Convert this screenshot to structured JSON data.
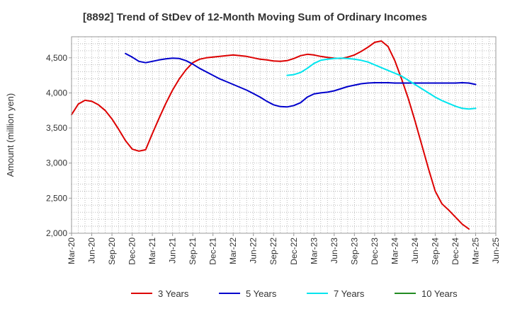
{
  "chart_data": {
    "type": "line",
    "title": "[8892]  Trend of StDev of 12-Month Moving Sum of Ordinary Incomes",
    "xlabel": "",
    "ylabel": "Amount (million yen)",
    "ylim": [
      2000,
      4800
    ],
    "yticks": [
      2000,
      2500,
      3000,
      3500,
      4000,
      4500
    ],
    "ytick_labels": [
      "2,000",
      "2,500",
      "3,000",
      "3,500",
      "4,000",
      "4,500"
    ],
    "x_start": "Mar-20",
    "x_end": "Jun-25",
    "xtick_labels": [
      "Mar-20",
      "Jun-20",
      "Sep-20",
      "Dec-20",
      "Mar-21",
      "Jun-21",
      "Sep-21",
      "Dec-21",
      "Mar-22",
      "Jun-22",
      "Sep-22",
      "Dec-22",
      "Mar-23",
      "Jun-23",
      "Sep-23",
      "Dec-23",
      "Mar-24",
      "Jun-24",
      "Sep-24",
      "Dec-24",
      "Mar-25",
      "Jun-25"
    ],
    "grid": true,
    "legend_position": "bottom",
    "series": [
      {
        "name": "3 Years",
        "color": "#dd0000",
        "points": [
          [
            "Mar-20",
            3690
          ],
          [
            "Apr-20",
            3840
          ],
          [
            "May-20",
            3895
          ],
          [
            "Jun-20",
            3880
          ],
          [
            "Jul-20",
            3830
          ],
          [
            "Aug-20",
            3750
          ],
          [
            "Sep-20",
            3630
          ],
          [
            "Oct-20",
            3480
          ],
          [
            "Nov-20",
            3320
          ],
          [
            "Dec-20",
            3200
          ],
          [
            "Jan-21",
            3170
          ],
          [
            "Feb-21",
            3190
          ],
          [
            "Mar-21",
            3420
          ],
          [
            "Apr-21",
            3640
          ],
          [
            "May-21",
            3850
          ],
          [
            "Jun-21",
            4040
          ],
          [
            "Jul-21",
            4200
          ],
          [
            "Aug-21",
            4330
          ],
          [
            "Sep-21",
            4430
          ],
          [
            "Oct-21",
            4480
          ],
          [
            "Nov-21",
            4500
          ],
          [
            "Dec-21",
            4510
          ],
          [
            "Jan-22",
            4520
          ],
          [
            "Feb-22",
            4530
          ],
          [
            "Mar-22",
            4540
          ],
          [
            "Apr-22",
            4530
          ],
          [
            "May-22",
            4520
          ],
          [
            "Jun-22",
            4500
          ],
          [
            "Jul-22",
            4480
          ],
          [
            "Aug-22",
            4470
          ],
          [
            "Sep-22",
            4455
          ],
          [
            "Oct-22",
            4450
          ],
          [
            "Nov-22",
            4460
          ],
          [
            "Dec-22",
            4490
          ],
          [
            "Jan-23",
            4530
          ],
          [
            "Feb-23",
            4550
          ],
          [
            "Mar-23",
            4540
          ],
          [
            "Apr-23",
            4520
          ],
          [
            "May-23",
            4505
          ],
          [
            "Jun-23",
            4495
          ],
          [
            "Jul-23",
            4490
          ],
          [
            "Aug-23",
            4510
          ],
          [
            "Sep-23",
            4540
          ],
          [
            "Oct-23",
            4590
          ],
          [
            "Nov-23",
            4650
          ],
          [
            "Dec-23",
            4720
          ],
          [
            "Jan-24",
            4740
          ],
          [
            "Feb-24",
            4660
          ],
          [
            "Mar-24",
            4460
          ],
          [
            "Apr-24",
            4200
          ],
          [
            "May-24",
            3920
          ],
          [
            "Jun-24",
            3600
          ],
          [
            "Jul-24",
            3260
          ],
          [
            "Aug-24",
            2920
          ],
          [
            "Sep-24",
            2600
          ],
          [
            "Oct-24",
            2420
          ],
          [
            "Nov-24",
            2330
          ],
          [
            "Dec-24",
            2230
          ],
          [
            "Jan-25",
            2130
          ],
          [
            "Feb-25",
            2060
          ]
        ]
      },
      {
        "name": "5 Years",
        "color": "#0000cc",
        "points": [
          [
            "Nov-20",
            4560
          ],
          [
            "Dec-20",
            4510
          ],
          [
            "Jan-21",
            4450
          ],
          [
            "Feb-21",
            4430
          ],
          [
            "Mar-21",
            4450
          ],
          [
            "Apr-21",
            4470
          ],
          [
            "May-21",
            4485
          ],
          [
            "Jun-21",
            4495
          ],
          [
            "Jul-21",
            4490
          ],
          [
            "Aug-21",
            4460
          ],
          [
            "Sep-21",
            4410
          ],
          [
            "Oct-21",
            4350
          ],
          [
            "Nov-21",
            4300
          ],
          [
            "Dec-21",
            4250
          ],
          [
            "Jan-22",
            4200
          ],
          [
            "Feb-22",
            4160
          ],
          [
            "Mar-22",
            4120
          ],
          [
            "Apr-22",
            4080
          ],
          [
            "May-22",
            4040
          ],
          [
            "Jun-22",
            3990
          ],
          [
            "Jul-22",
            3940
          ],
          [
            "Aug-22",
            3880
          ],
          [
            "Sep-22",
            3830
          ],
          [
            "Oct-22",
            3805
          ],
          [
            "Nov-22",
            3800
          ],
          [
            "Dec-22",
            3820
          ],
          [
            "Jan-23",
            3860
          ],
          [
            "Feb-23",
            3940
          ],
          [
            "Mar-23",
            3985
          ],
          [
            "Apr-23",
            4000
          ],
          [
            "May-23",
            4010
          ],
          [
            "Jun-23",
            4030
          ],
          [
            "Jul-23",
            4060
          ],
          [
            "Aug-23",
            4090
          ],
          [
            "Sep-23",
            4110
          ],
          [
            "Oct-23",
            4130
          ],
          [
            "Nov-23",
            4140
          ],
          [
            "Dec-23",
            4145
          ],
          [
            "Jan-24",
            4145
          ],
          [
            "Feb-24",
            4145
          ],
          [
            "Mar-24",
            4140
          ],
          [
            "Apr-24",
            4140
          ],
          [
            "May-24",
            4140
          ],
          [
            "Jun-24",
            4140
          ],
          [
            "Jul-24",
            4140
          ],
          [
            "Aug-24",
            4140
          ],
          [
            "Sep-24",
            4140
          ],
          [
            "Oct-24",
            4140
          ],
          [
            "Nov-24",
            4140
          ],
          [
            "Dec-24",
            4140
          ],
          [
            "Jan-25",
            4145
          ],
          [
            "Feb-25",
            4140
          ],
          [
            "Mar-25",
            4120
          ]
        ]
      },
      {
        "name": "7 Years",
        "color": "#00e5ee",
        "points": [
          [
            "Nov-22",
            4250
          ],
          [
            "Dec-22",
            4260
          ],
          [
            "Jan-23",
            4290
          ],
          [
            "Feb-23",
            4350
          ],
          [
            "Mar-23",
            4420
          ],
          [
            "Apr-23",
            4465
          ],
          [
            "May-23",
            4480
          ],
          [
            "Jun-23",
            4490
          ],
          [
            "Jul-23",
            4495
          ],
          [
            "Aug-23",
            4490
          ],
          [
            "Sep-23",
            4480
          ],
          [
            "Oct-23",
            4465
          ],
          [
            "Nov-23",
            4440
          ],
          [
            "Dec-23",
            4400
          ],
          [
            "Jan-24",
            4360
          ],
          [
            "Feb-24",
            4320
          ],
          [
            "Mar-24",
            4280
          ],
          [
            "Apr-24",
            4240
          ],
          [
            "May-24",
            4180
          ],
          [
            "Jun-24",
            4120
          ],
          [
            "Jul-24",
            4060
          ],
          [
            "Aug-24",
            4000
          ],
          [
            "Sep-24",
            3940
          ],
          [
            "Oct-24",
            3890
          ],
          [
            "Nov-24",
            3850
          ],
          [
            "Dec-24",
            3810
          ],
          [
            "Jan-25",
            3780
          ],
          [
            "Feb-25",
            3770
          ],
          [
            "Mar-25",
            3780
          ]
        ]
      },
      {
        "name": "10 Years",
        "color": "#228b22",
        "points": []
      }
    ]
  }
}
